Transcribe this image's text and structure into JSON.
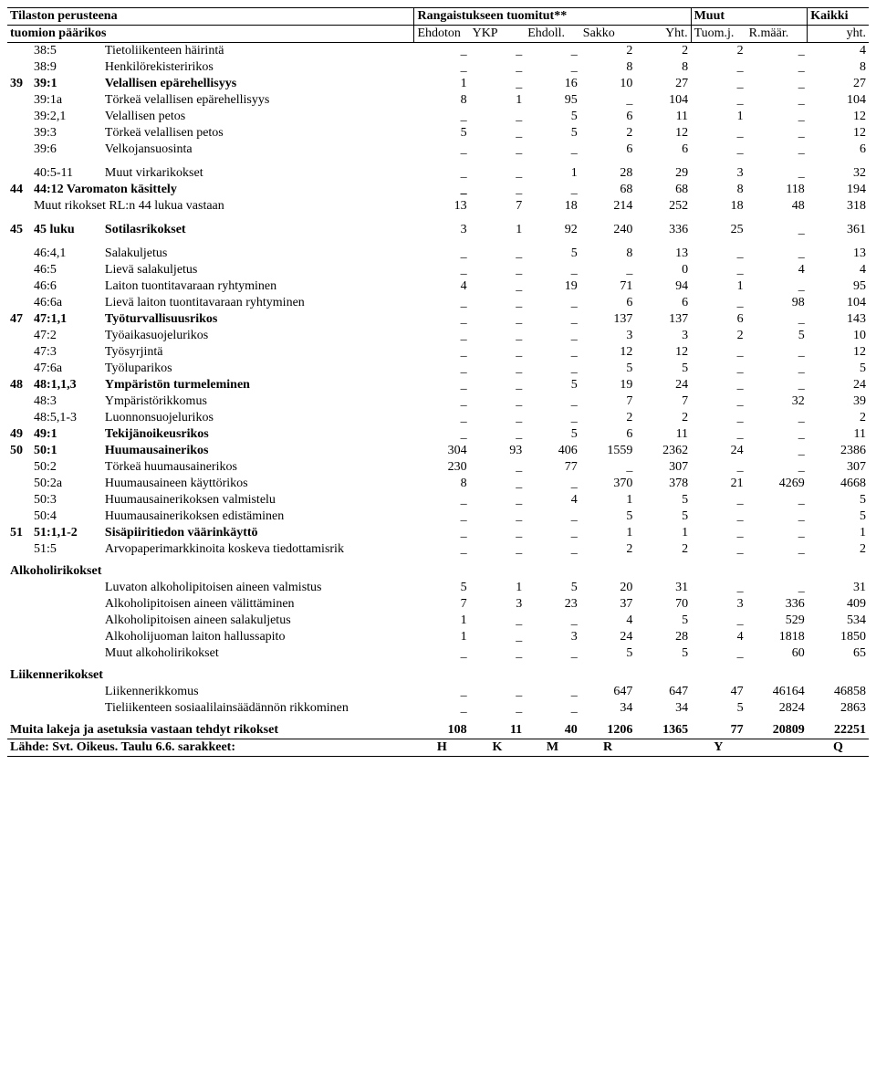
{
  "header": {
    "left_top": "Tilaston perusteena",
    "left_bot": "tuomion päärikos",
    "mid_top": "Rangaistukseen tuomitut**",
    "c_ehdoton": "Ehdoton",
    "c_ykp": "YKP",
    "c_ehdoll": "Ehdoll.",
    "c_sakko": "Sakko",
    "c_yht": "Yht.",
    "muut_top": "Muut",
    "c_tuomj": "Tuom.j.",
    "c_rmaar": "R.määr.",
    "kaikki_top": "Kaikki",
    "c_kaikki": "yht."
  },
  "footer": {
    "label": "Lähde: Svt. Oikeus. Taulu 6.6. sarakkeet:",
    "H": "H",
    "K": "K",
    "M": "M",
    "R": "R",
    "Y": "Y",
    "Q": "Q"
  },
  "rows": [
    {
      "ch": "",
      "code": "38:5",
      "desc": "Tietoliikenteen häirintä",
      "v": [
        "_",
        "_",
        "_",
        "2",
        "2",
        "2",
        "_",
        "4"
      ]
    },
    {
      "ch": "",
      "code": "38:9",
      "desc": "Henkilörekisteririkos",
      "v": [
        "_",
        "_",
        "_",
        "8",
        "8",
        "_",
        "_",
        "8"
      ]
    },
    {
      "ch": "39",
      "code": "39:1",
      "desc": "Velallisen epärehellisyys",
      "v": [
        "1",
        "_",
        "16",
        "10",
        "27",
        "_",
        "_",
        "27"
      ],
      "section": true
    },
    {
      "ch": "",
      "code": "39:1a",
      "desc": "Törkeä velallisen epärehellisyys",
      "v": [
        "8",
        "1",
        "95",
        "_",
        "104",
        "_",
        "_",
        "104"
      ]
    },
    {
      "ch": "",
      "code": "39:2,1",
      "desc": "Velallisen petos",
      "v": [
        "_",
        "_",
        "5",
        "6",
        "11",
        "1",
        "_",
        "12"
      ]
    },
    {
      "ch": "",
      "code": "39:3",
      "desc": "Törkeä velallisen petos",
      "v": [
        "5",
        "_",
        "5",
        "2",
        "12",
        "_",
        "_",
        "12"
      ]
    },
    {
      "ch": "",
      "code": "39:6",
      "desc": "Velkojansuosinta",
      "v": [
        "_",
        "_",
        "_",
        "6",
        "6",
        "_",
        "_",
        "6"
      ]
    },
    {
      "ch": "",
      "code": "40:5-11",
      "desc": "Muut virkarikokset",
      "v": [
        "_",
        "_",
        "1",
        "28",
        "29",
        "3",
        "_",
        "32"
      ],
      "gap": true
    },
    {
      "ch": "44",
      "code": "44:12",
      "desc": "Varomaton käsittely",
      "v": [
        "_",
        "_",
        "_",
        "68",
        "68",
        "8",
        "118",
        "194"
      ],
      "section": true,
      "descColspan": true,
      "descFull": "44:12 Varomaton käsittely"
    },
    {
      "ch": "",
      "code": "",
      "desc": "Muut rikokset RL:n 44 lukua vastaan",
      "v": [
        "13",
        "7",
        "18",
        "214",
        "252",
        "18",
        "48",
        "318"
      ],
      "descColspan": true
    },
    {
      "ch": "45",
      "code": "45 luku",
      "desc": "Sotilasrikokset",
      "v": [
        "3",
        "1",
        "92",
        "240",
        "336",
        "25",
        "_",
        "361"
      ],
      "section": true,
      "gap": true
    },
    {
      "ch": "",
      "code": "46:4,1",
      "desc": "Salakuljetus",
      "v": [
        "_",
        "_",
        "5",
        "8",
        "13",
        "_",
        "_",
        "13"
      ],
      "gap": true
    },
    {
      "ch": "",
      "code": "46:5",
      "desc": "Lievä salakuljetus",
      "v": [
        "_",
        "_",
        "_",
        "_",
        "0",
        "_",
        "4",
        "4"
      ]
    },
    {
      "ch": "",
      "code": "46:6",
      "desc": "Laiton tuontitavaraan ryhtyminen",
      "v": [
        "4",
        "_",
        "19",
        "71",
        "94",
        "1",
        "_",
        "95"
      ]
    },
    {
      "ch": "",
      "code": "46:6a",
      "desc": "Lievä laiton tuontitavaraan ryhtyminen",
      "v": [
        "_",
        "_",
        "_",
        "6",
        "6",
        "_",
        "98",
        "104"
      ]
    },
    {
      "ch": "47",
      "code": "47:1,1",
      "desc": "Työturvallisuusrikos",
      "v": [
        "_",
        "_",
        "_",
        "137",
        "137",
        "6",
        "_",
        "143"
      ],
      "section": true
    },
    {
      "ch": "",
      "code": "47:2",
      "desc": "Työaikasuojelurikos",
      "v": [
        "_",
        "_",
        "_",
        "3",
        "3",
        "2",
        "5",
        "10"
      ]
    },
    {
      "ch": "",
      "code": "47:3",
      "desc": "Työsyrjintä",
      "v": [
        "_",
        "_",
        "_",
        "12",
        "12",
        "_",
        "_",
        "12"
      ]
    },
    {
      "ch": "",
      "code": "47:6a",
      "desc": "Työluparikos",
      "v": [
        "_",
        "_",
        "_",
        "5",
        "5",
        "_",
        "_",
        "5"
      ]
    },
    {
      "ch": "48",
      "code": "48:1,1,3",
      "desc": "Ympäristön turmeleminen",
      "v": [
        "_",
        "_",
        "5",
        "19",
        "24",
        "_",
        "_",
        "24"
      ],
      "section": true
    },
    {
      "ch": "",
      "code": "48:3",
      "desc": "Ympäristörikkomus",
      "v": [
        "_",
        "_",
        "_",
        "7",
        "7",
        "_",
        "32",
        "39"
      ]
    },
    {
      "ch": "",
      "code": "48:5,1-3",
      "desc": "Luonnonsuojelurikos",
      "v": [
        "_",
        "_",
        "_",
        "2",
        "2",
        "_",
        "_",
        "2"
      ]
    },
    {
      "ch": "49",
      "code": "49:1",
      "desc": "Tekijänoikeusrikos",
      "v": [
        "_",
        "_",
        "5",
        "6",
        "11",
        "_",
        "_",
        "11"
      ],
      "section": true
    },
    {
      "ch": "50",
      "code": "50:1",
      "desc": "Huumausainerikos",
      "v": [
        "304",
        "93",
        "406",
        "1559",
        "2362",
        "24",
        "_",
        "2386"
      ],
      "section": true
    },
    {
      "ch": "",
      "code": "50:2",
      "desc": "Törkeä huumausainerikos",
      "v": [
        "230",
        "_",
        "77",
        "_",
        "307",
        "_",
        "_",
        "307"
      ]
    },
    {
      "ch": "",
      "code": "50:2a",
      "desc": "Huumausaineen käyttörikos",
      "v": [
        "8",
        "_",
        "_",
        "370",
        "378",
        "21",
        "4269",
        "4668"
      ]
    },
    {
      "ch": "",
      "code": "50:3",
      "desc": "Huumausainerikoksen valmistelu",
      "v": [
        "_",
        "_",
        "4",
        "1",
        "5",
        "_",
        "_",
        "5"
      ]
    },
    {
      "ch": "",
      "code": "50:4",
      "desc": "Huumausainerikoksen edistäminen",
      "v": [
        "_",
        "_",
        "_",
        "5",
        "5",
        "_",
        "_",
        "5"
      ]
    },
    {
      "ch": "51",
      "code": "51:1,1-2",
      "desc": "Sisäpiiritiedon väärinkäyttö",
      "v": [
        "_",
        "_",
        "_",
        "1",
        "1",
        "_",
        "_",
        "1"
      ],
      "section": true
    },
    {
      "ch": "",
      "code": "51:5",
      "desc": "Arvopaperimarkkinoita koskeva tiedottamisrik",
      "v": [
        "_",
        "_",
        "_",
        "2",
        "2",
        "_",
        "_",
        "2"
      ]
    },
    {
      "ch": "",
      "code": "",
      "desc": "Alkoholirikokset",
      "v": [
        "",
        "",
        "",
        "",
        "",
        "",
        "",
        ""
      ],
      "heading": true
    },
    {
      "ch": "",
      "code": "",
      "desc": "Luvaton alkoholipitoisen aineen valmistus",
      "v": [
        "5",
        "1",
        "5",
        "20",
        "31",
        "_",
        "_",
        "31"
      ]
    },
    {
      "ch": "",
      "code": "",
      "desc": "Alkoholipitoisen aineen välittäminen",
      "v": [
        "7",
        "3",
        "23",
        "37",
        "70",
        "3",
        "336",
        "409"
      ]
    },
    {
      "ch": "",
      "code": "",
      "desc": "Alkoholipitoisen aineen salakuljetus",
      "v": [
        "1",
        "_",
        "_",
        "4",
        "5",
        "_",
        "529",
        "534"
      ]
    },
    {
      "ch": "",
      "code": "",
      "desc": "Alkoholijuoman laiton hallussapito",
      "v": [
        "1",
        "_",
        "3",
        "24",
        "28",
        "4",
        "1818",
        "1850"
      ]
    },
    {
      "ch": "",
      "code": "",
      "desc": "Muut  alkoholirikokset",
      "v": [
        "_",
        "_",
        "_",
        "5",
        "5",
        "_",
        "60",
        "65"
      ]
    },
    {
      "ch": "",
      "code": "",
      "desc": "Liikennerikokset",
      "v": [
        "",
        "",
        "",
        "",
        "",
        "",
        "",
        ""
      ],
      "heading": true
    },
    {
      "ch": "",
      "code": "",
      "desc": "Liikennerikkomus",
      "v": [
        "_",
        "_",
        "_",
        "647",
        "647",
        "47",
        "46164",
        "46858"
      ]
    },
    {
      "ch": "",
      "code": "",
      "desc": "Tieliikenteen sosiaalilainsäädännön rikkominen",
      "v": [
        "_",
        "_",
        "_",
        "34",
        "34",
        "5",
        "2824",
        "2863"
      ]
    },
    {
      "ch": "",
      "code": "",
      "desc": "Muita lakeja ja asetuksia vastaan tehdyt rikokset",
      "v": [
        "108",
        "11",
        "40",
        "1206",
        "1365",
        "77",
        "20809",
        "22251"
      ],
      "heading": true,
      "fullrow": true
    }
  ]
}
